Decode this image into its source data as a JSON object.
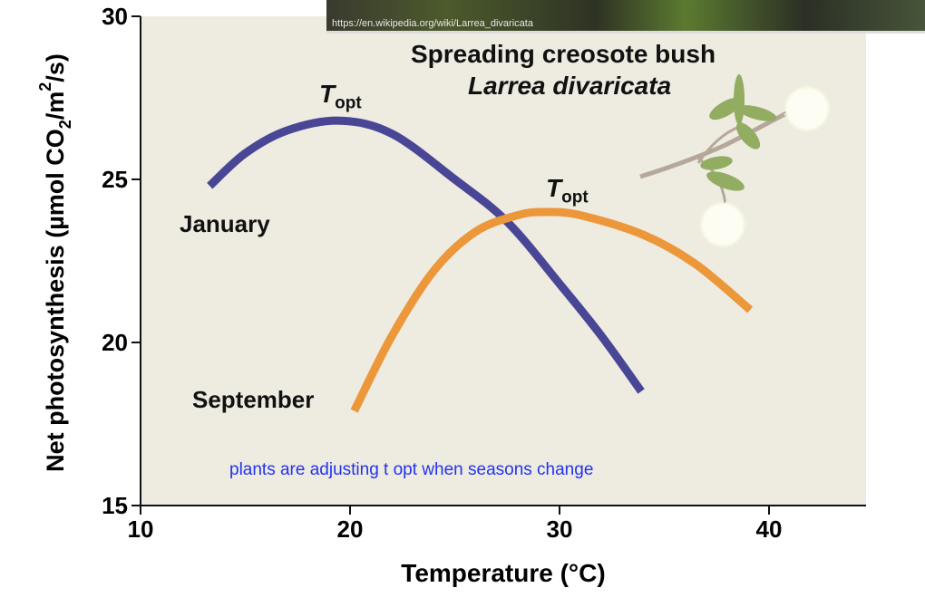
{
  "photo_caption": "https://en.wikipedia.org/wiki/Larrea_divaricata",
  "species_common": "Spreading creosote bush",
  "species_latin": "Larrea divaricata",
  "topt_T": "T",
  "topt_sub": "opt",
  "note": "plants are adjusting t opt when seasons change",
  "chart_data": {
    "type": "line",
    "xlabel": "Temperature (°C)",
    "ylabel_parts": [
      "Net photosynthesis (µmol CO",
      "2",
      "/m",
      "2",
      "/s)"
    ],
    "xlim": [
      10,
      45
    ],
    "ylim": [
      15,
      30
    ],
    "xticks": [
      10,
      20,
      30,
      40
    ],
    "yticks": [
      15,
      20,
      25,
      30
    ],
    "grid": false,
    "colors": {
      "January": "#4a4696",
      "September": "#ec973a",
      "background": "#eeebe1"
    },
    "series": [
      {
        "name": "January",
        "x": [
          13.3,
          15,
          17,
          19.5,
          22,
          25,
          27.5,
          30,
          32,
          33.9
        ],
        "y": [
          24.8,
          25.8,
          26.5,
          26.8,
          26.4,
          25.0,
          23.7,
          21.8,
          20.2,
          18.5
        ],
        "peak_label": "Topt"
      },
      {
        "name": "September",
        "x": [
          20.2,
          22,
          24,
          26,
          28,
          29.3,
          31,
          34,
          36.5,
          39.1
        ],
        "y": [
          17.9,
          20.2,
          22.2,
          23.4,
          23.9,
          24.0,
          23.9,
          23.3,
          22.4,
          21.0
        ],
        "peak_label": "Topt"
      }
    ]
  }
}
